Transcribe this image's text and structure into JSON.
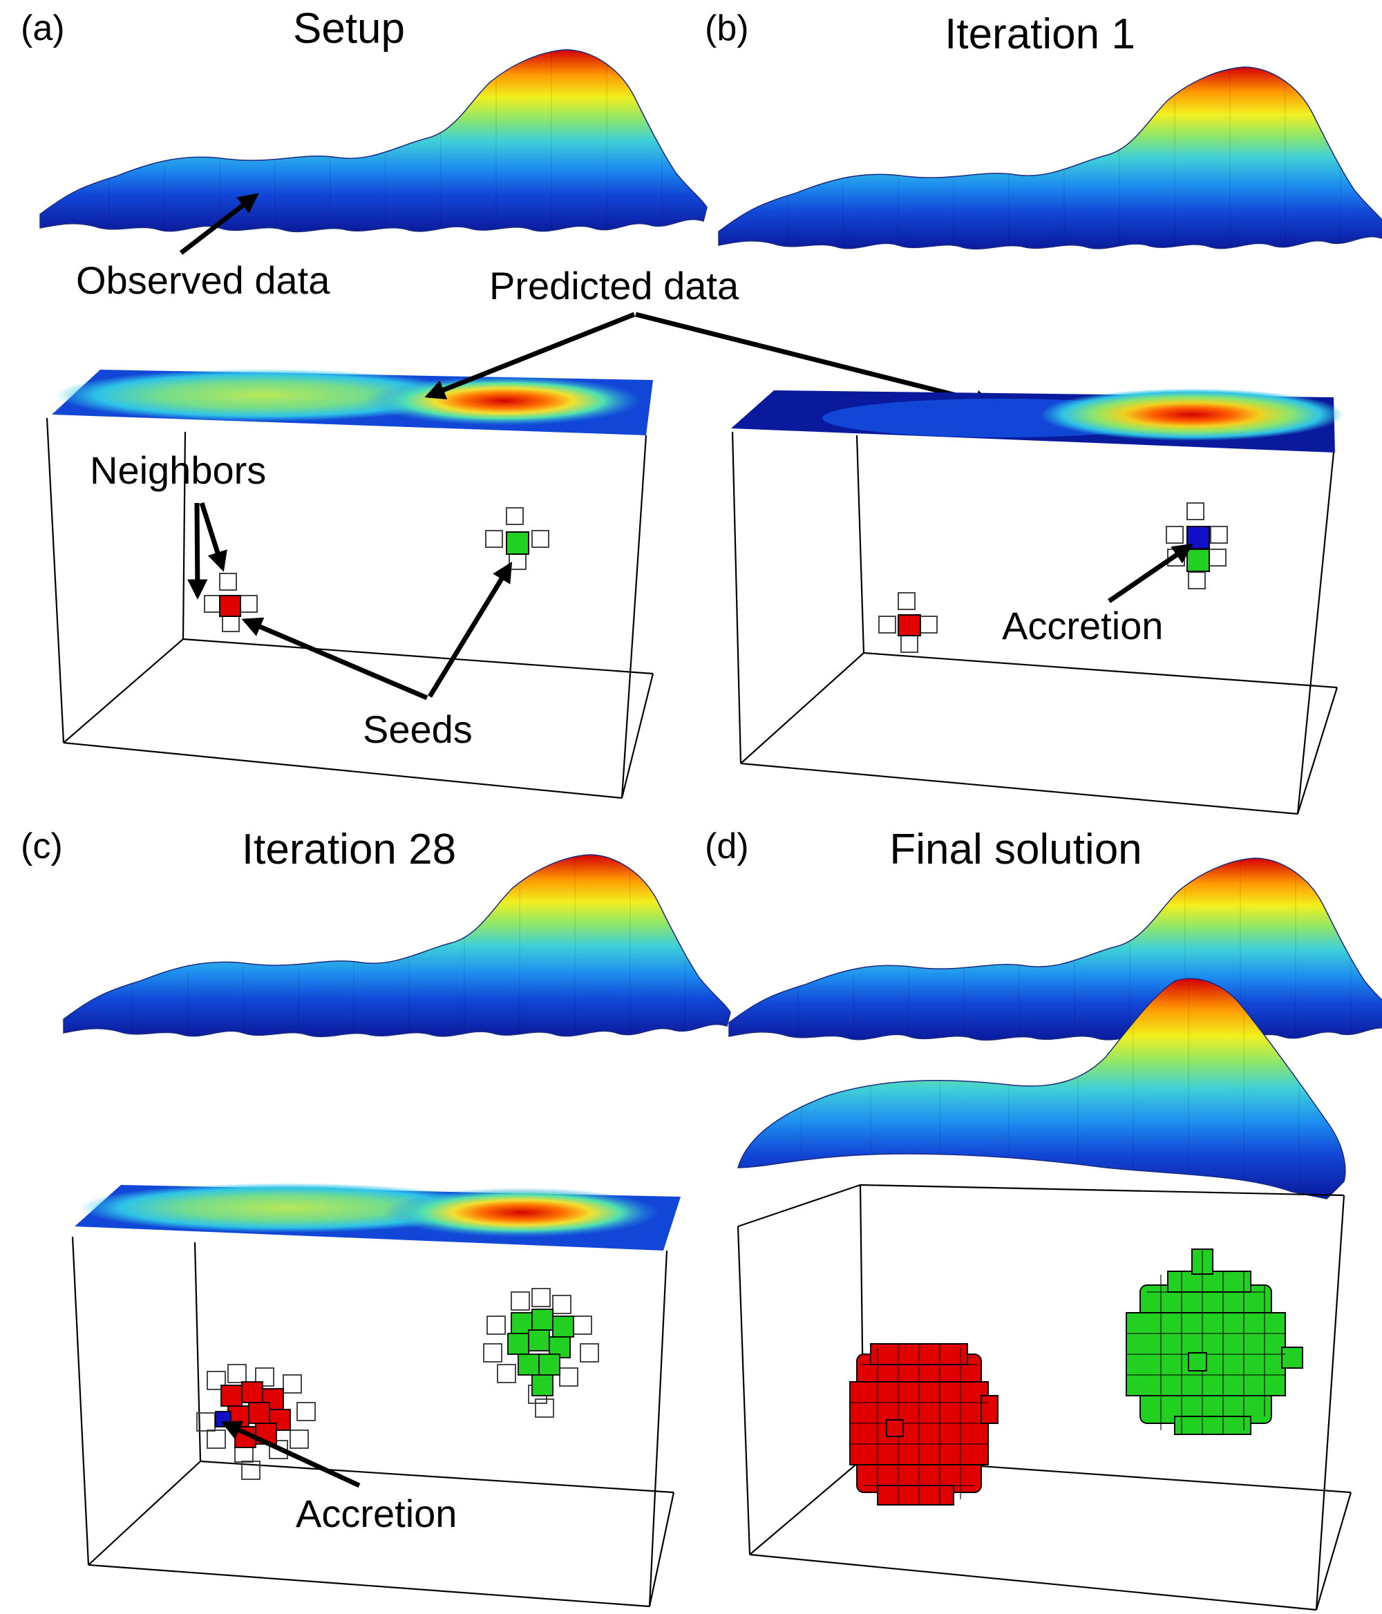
{
  "panels": [
    {
      "id": "a",
      "label": "(a)",
      "title": "Setup"
    },
    {
      "id": "b",
      "label": "(b)",
      "title": "Iteration 1"
    },
    {
      "id": "c",
      "label": "(c)",
      "title": "Iteration 28"
    },
    {
      "id": "d",
      "label": "(d)",
      "title": "Final solution"
    }
  ],
  "annotations": {
    "observed": "Observed data",
    "predicted": "Predicted data",
    "neighbors": "Neighbors",
    "seeds": "Seeds",
    "accretion_b": "Accretion",
    "accretion_c": "Accretion"
  },
  "colors": {
    "seed_red": "#e00000",
    "seed_green": "#22d022",
    "accretion_blue": "#1010c8",
    "ramp": [
      "#0a1a9c",
      "#1246d6",
      "#1e8ef0",
      "#2ec3e8",
      "#4fe0b0",
      "#a9e850",
      "#f2f020",
      "#ffb000",
      "#ff5a00",
      "#d40000"
    ]
  }
}
